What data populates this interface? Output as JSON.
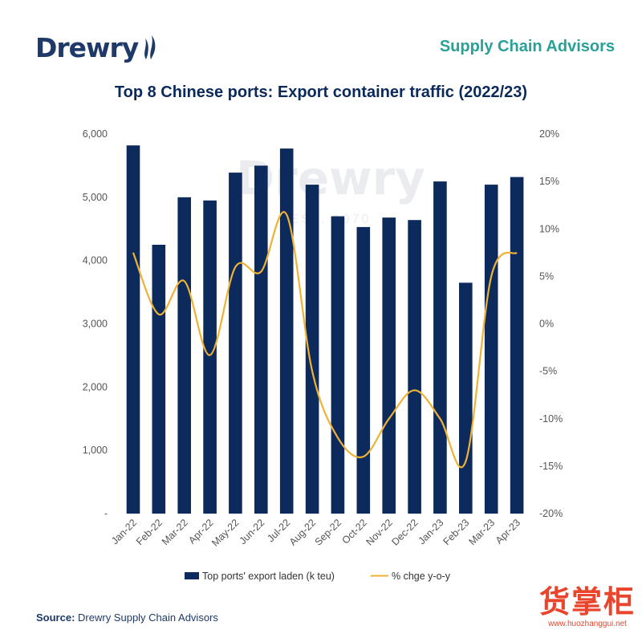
{
  "header": {
    "logo_text": "Drewry",
    "tagline": "Supply Chain Advisors",
    "title": "Top 8 Chinese ports: Export container traffic (2022/23)"
  },
  "watermark": {
    "text": "Drewry",
    "subtext": "EST. 1970"
  },
  "chart_data": {
    "type": "bar",
    "categories": [
      "Jan-22",
      "Feb-22",
      "Mar-22",
      "Apr-22",
      "May-22",
      "Jun-22",
      "Jul-22",
      "Aug-22",
      "Sep-22",
      "Oct-22",
      "Nov-22",
      "Dec-22",
      "Jan-23",
      "Feb-23",
      "Mar-23",
      "Apr-23"
    ],
    "series": [
      {
        "name": "Top ports' export laden (k teu)",
        "type": "bar",
        "axis": "left",
        "color": "#0d2a5c",
        "values": [
          5820,
          4250,
          5000,
          4950,
          5390,
          5500,
          5770,
          5200,
          4700,
          4530,
          4680,
          4640,
          5250,
          3650,
          5200,
          5320
        ]
      },
      {
        "name": "% chge y-o-y",
        "type": "line",
        "axis": "right",
        "color": "#f0b232",
        "values": [
          7.5,
          1.0,
          4.5,
          -3.3,
          6.0,
          5.5,
          11.5,
          -5.0,
          -12.0,
          -14.0,
          -10.0,
          -7.0,
          -10.0,
          -14.5,
          5.0,
          7.5
        ]
      }
    ],
    "y_left": {
      "ylim": [
        0,
        6000
      ],
      "tick_labels": [
        "-",
        "1,000",
        "2,000",
        "3,000",
        "4,000",
        "5,000",
        "6,000"
      ]
    },
    "y_right": {
      "ylim": [
        -20,
        20
      ],
      "tick_labels": [
        "-20%",
        "-15%",
        "-10%",
        "-5%",
        "0%",
        "5%",
        "10%",
        "15%",
        "20%"
      ]
    },
    "grid": false,
    "legend_position": "bottom"
  },
  "footer": {
    "source_label": "Source:",
    "source_text": "Drewry Supply Chain Advisors",
    "stamp_text": "货掌柜",
    "stamp_url": "www.huozhanggui.net"
  }
}
